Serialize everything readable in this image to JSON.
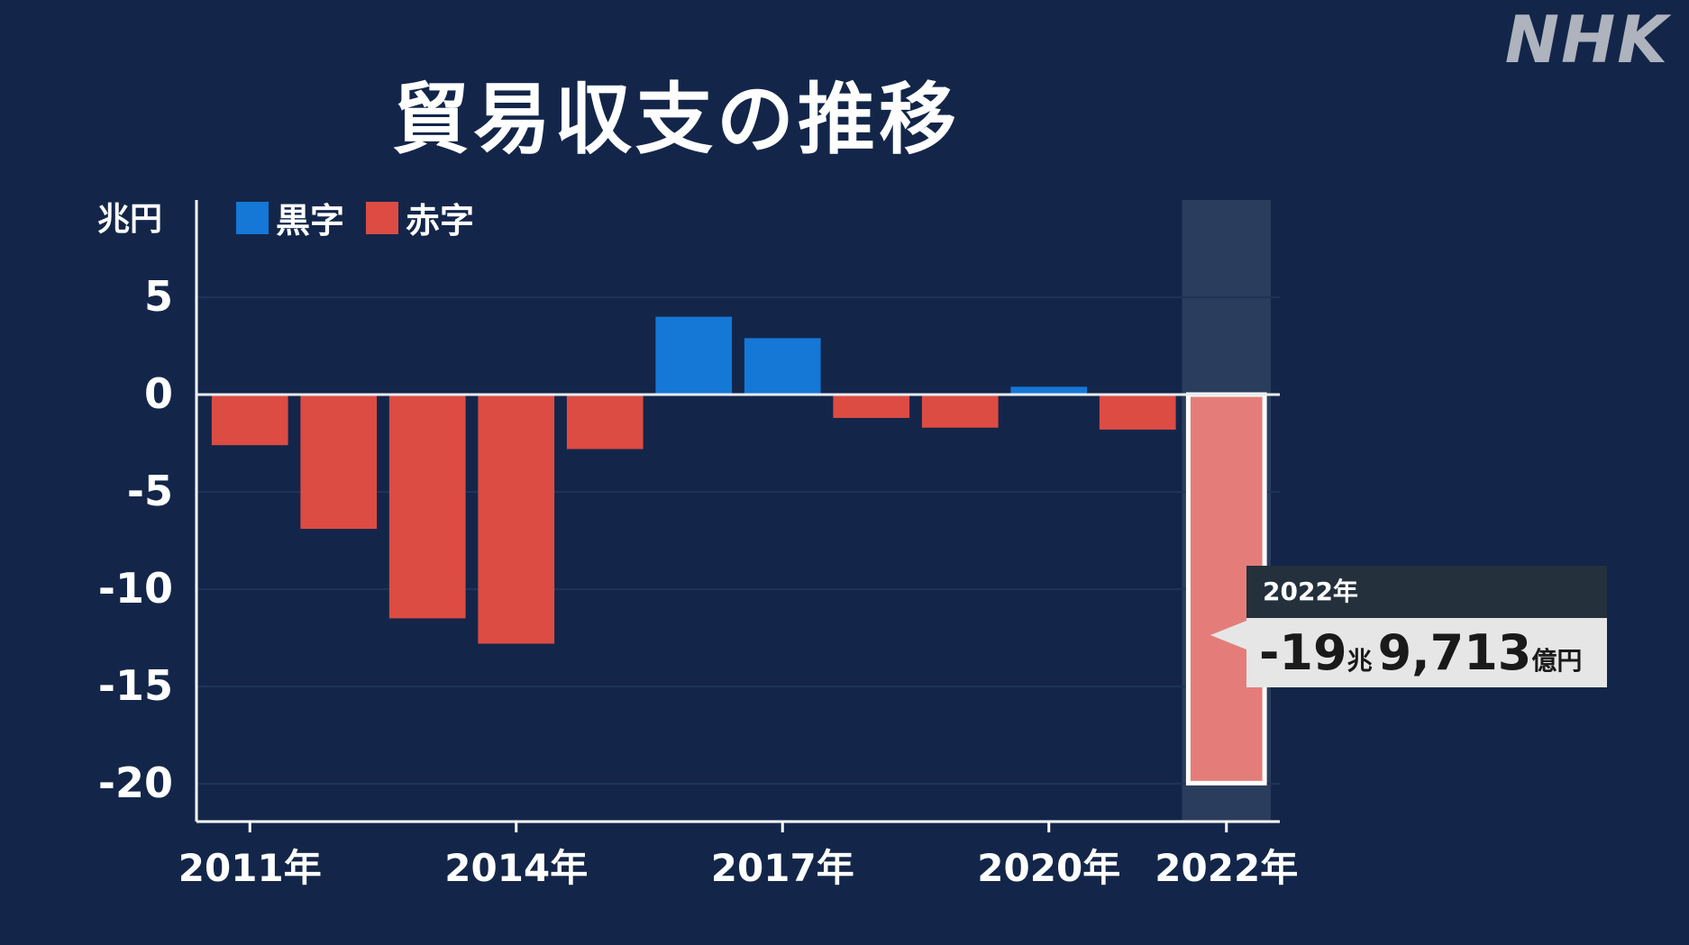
{
  "title": "貿易収支の推移",
  "logo": "NHK",
  "colors": {
    "background": "#13264a",
    "surplus": "#1577d6",
    "deficit": "#dc4c43",
    "highlight_bar": "#e47d79",
    "axis": "#ffffff"
  },
  "legend": [
    {
      "label": "黒字",
      "color": "#1577d6"
    },
    {
      "label": "赤字",
      "color": "#dc4c43"
    }
  ],
  "callout": {
    "year": "2022年",
    "value_trillion": "-19",
    "trillion_unit": "兆",
    "value_hundred_million": "9,713",
    "hundred_million_unit": "億円"
  },
  "chart_data": {
    "type": "bar",
    "title": "貿易収支の推移",
    "ylabel": "兆円",
    "xlabel": "",
    "ylim": [
      -22,
      10
    ],
    "yticks": [
      5,
      0,
      -5,
      -10,
      -15,
      -20
    ],
    "categories": [
      "2011",
      "2012",
      "2013",
      "2014",
      "2015",
      "2016",
      "2017",
      "2018",
      "2019",
      "2020",
      "2021",
      "2022"
    ],
    "xtick_labels": [
      {
        "category": "2011",
        "label": "2011年"
      },
      {
        "category": "2014",
        "label": "2014年"
      },
      {
        "category": "2017",
        "label": "2017年"
      },
      {
        "category": "2020",
        "label": "2020年"
      },
      {
        "category": "2022",
        "label": "2022年"
      }
    ],
    "values": [
      -2.6,
      -6.9,
      -11.5,
      -12.8,
      -2.8,
      4.0,
      2.9,
      -1.2,
      -1.7,
      0.4,
      -1.8,
      -19.97
    ],
    "highlight": "2022",
    "grid": true,
    "legend_placement": "top-left"
  }
}
